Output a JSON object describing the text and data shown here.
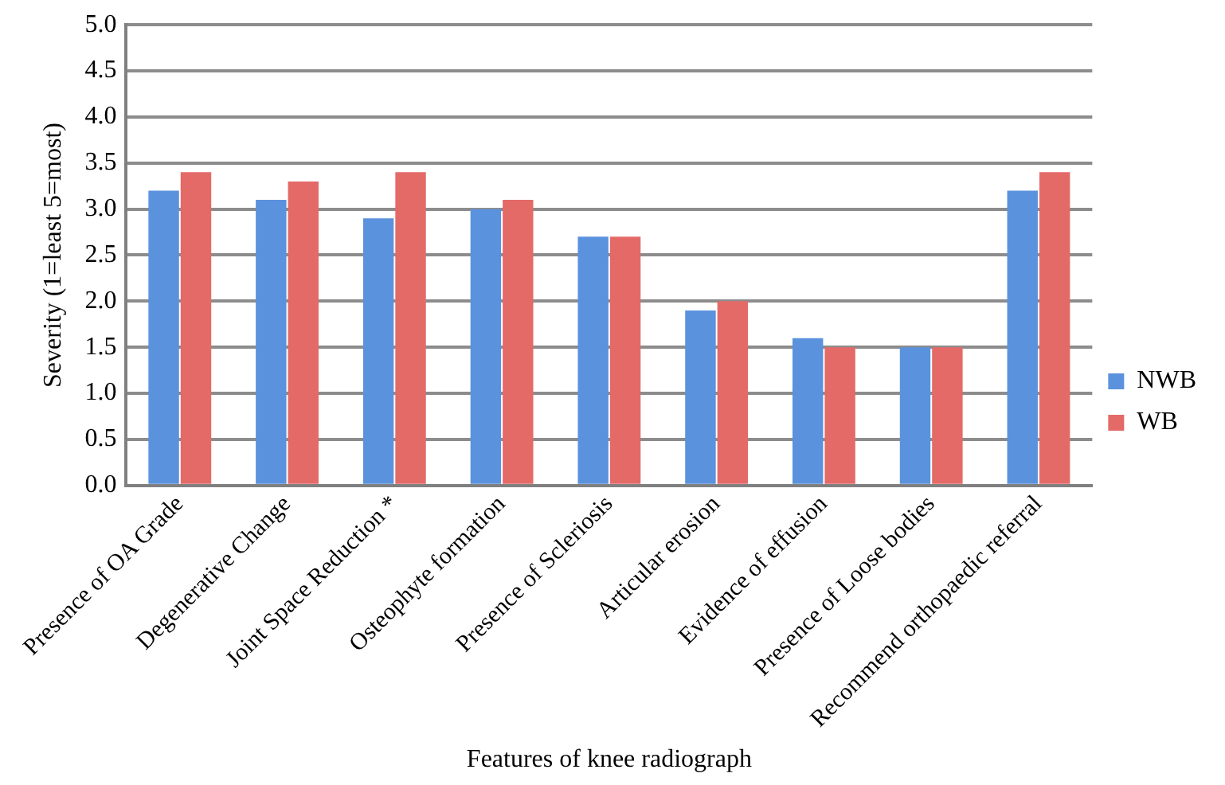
{
  "chart_data": {
    "type": "bar",
    "xlabel": "Features of knee radiograph",
    "ylabel": "Severity (1=least 5=most)",
    "categories": [
      "Presence of OA Grade",
      "Degenerative Change",
      "Joint Space Reduction *",
      "Osteophyte formation",
      "Presence of Scleriosis",
      "Articular erosion",
      "Evidence of effusion",
      "Presence of Loose bodies",
      "Recommend orthopaedic referral"
    ],
    "series": [
      {
        "name": "NWB",
        "color": "#5b92dd",
        "values": [
          3.2,
          3.1,
          2.9,
          3.0,
          2.7,
          1.9,
          1.6,
          1.5,
          3.2
        ]
      },
      {
        "name": "WB",
        "color": "#e46a68",
        "values": [
          3.4,
          3.3,
          3.4,
          3.1,
          2.7,
          2.0,
          1.5,
          1.5,
          3.4
        ]
      }
    ],
    "ylim": [
      0,
      5
    ],
    "yticks": [
      {
        "value": 0,
        "label": "0.0"
      },
      0.5,
      {
        "value": 1,
        "label": "1.0"
      },
      1.5,
      {
        "value": 2,
        "label": "2.0"
      },
      2.5,
      {
        "value": 3,
        "label": "3.0"
      },
      3.5,
      {
        "value": 4,
        "label": "4.0"
      },
      4.5,
      {
        "value": 5,
        "label": "5.0"
      }
    ],
    "grid": "y",
    "legend": "right"
  }
}
